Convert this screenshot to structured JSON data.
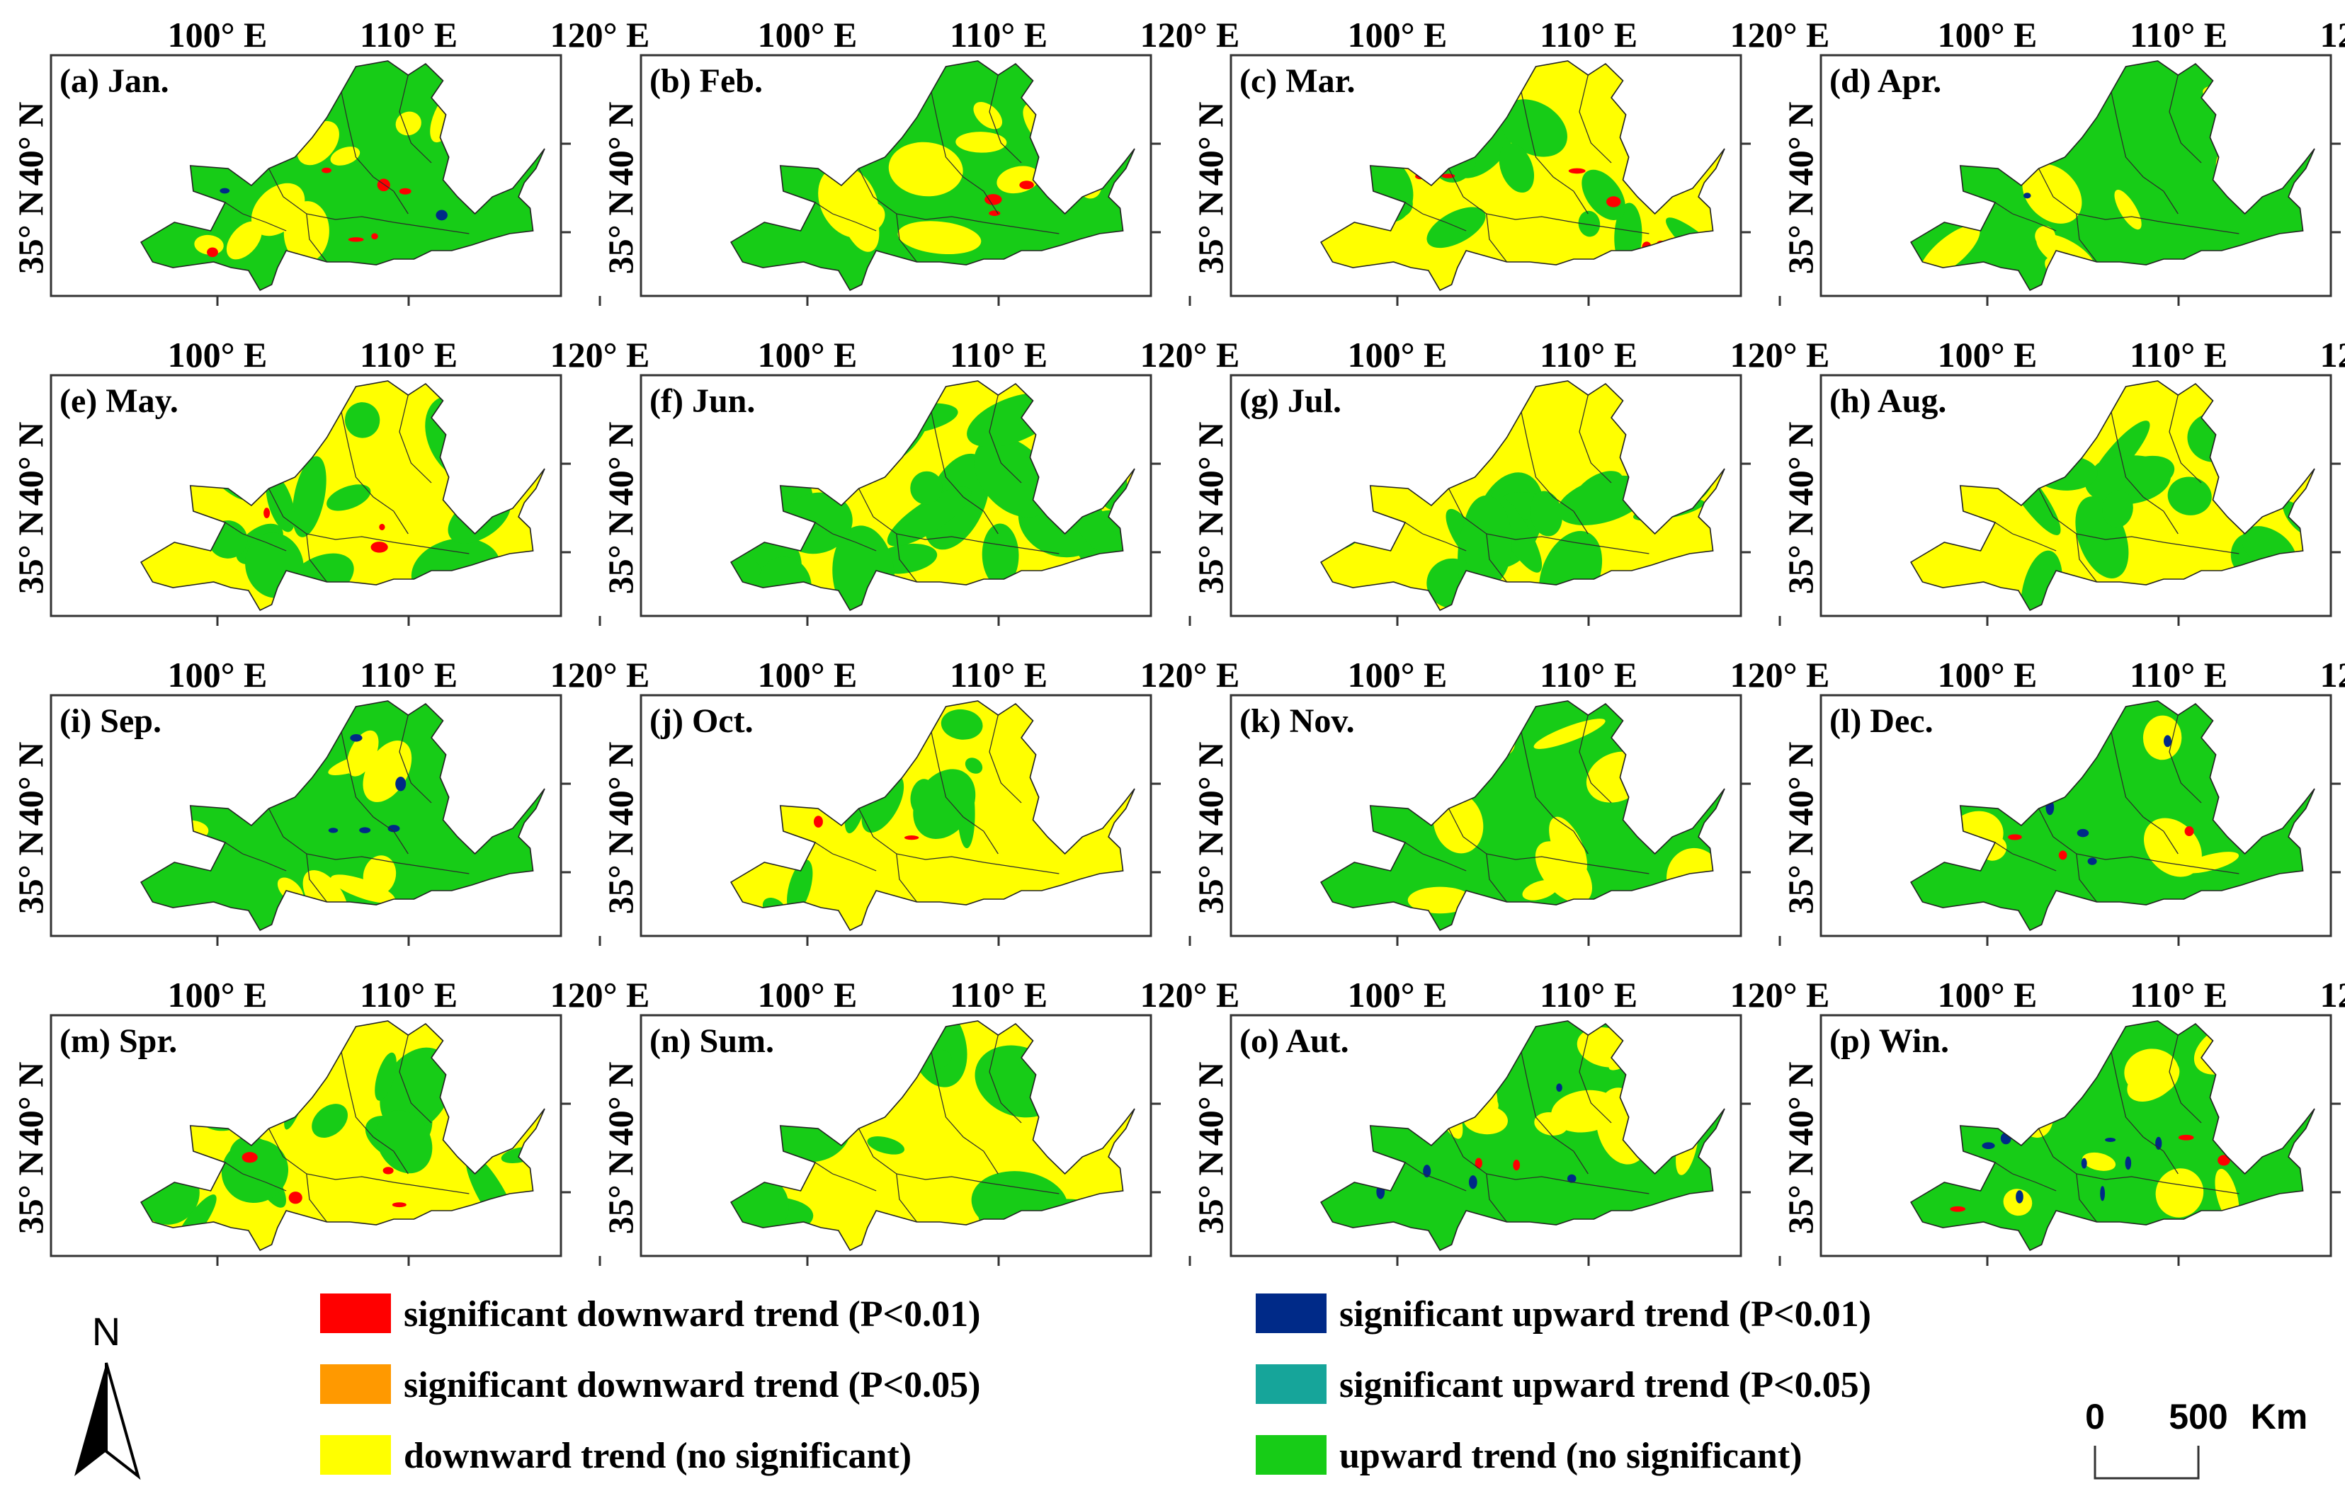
{
  "colors": {
    "sig_down_001": "#ff0000",
    "sig_down_005": "#ff9900",
    "down": "#ffff00",
    "sig_up_001": "#002a88",
    "sig_up_005": "#16a59a",
    "up": "#17cc17",
    "frame": "#333333"
  },
  "axes": {
    "lon_labels": [
      "100° E",
      "110° E",
      "120° E"
    ],
    "lat_labels": [
      "40° N",
      "35° N"
    ]
  },
  "panels": [
    {
      "id": "a",
      "title": "(a) Jan.",
      "dominant": "up",
      "yellow": 0.2,
      "red": 0.02,
      "blue": 0.01
    },
    {
      "id": "b",
      "title": "(b) Feb.",
      "dominant": "up",
      "yellow": 0.3,
      "red": 0.01,
      "blue": 0.0
    },
    {
      "id": "c",
      "title": "(c) Mar.",
      "dominant": "down",
      "yellow": 0.6,
      "red": 0.02,
      "blue": 0.0
    },
    {
      "id": "d",
      "title": "(d) Apr.",
      "dominant": "up",
      "yellow": 0.18,
      "red": 0.0,
      "blue": 0.01
    },
    {
      "id": "e",
      "title": "(e) May.",
      "dominant": "down",
      "yellow": 0.55,
      "red": 0.01,
      "blue": 0.0
    },
    {
      "id": "f",
      "title": "(f) Jun.",
      "dominant": "down",
      "yellow": 0.45,
      "red": 0.0,
      "blue": 0.0
    },
    {
      "id": "g",
      "title": "(g) Jul.",
      "dominant": "down",
      "yellow": 0.45,
      "red": 0.0,
      "blue": 0.0
    },
    {
      "id": "h",
      "title": "(h) Aug.",
      "dominant": "down",
      "yellow": 0.5,
      "red": 0.0,
      "blue": 0.0
    },
    {
      "id": "i",
      "title": "(i) Sep.",
      "dominant": "up",
      "yellow": 0.15,
      "red": 0.0,
      "blue": 0.02
    },
    {
      "id": "j",
      "title": "(j) Oct.",
      "dominant": "down",
      "yellow": 0.75,
      "red": 0.01,
      "blue": 0.0
    },
    {
      "id": "k",
      "title": "(k) Nov.",
      "dominant": "up",
      "yellow": 0.25,
      "red": 0.0,
      "blue": 0.0
    },
    {
      "id": "l",
      "title": "(l) Dec.",
      "dominant": "up",
      "yellow": 0.1,
      "red": 0.01,
      "blue": 0.02
    },
    {
      "id": "m",
      "title": "(m) Spr.",
      "dominant": "down",
      "yellow": 0.55,
      "red": 0.02,
      "blue": 0.0
    },
    {
      "id": "n",
      "title": "(n) Sum.",
      "dominant": "down",
      "yellow": 0.5,
      "red": 0.0,
      "blue": 0.0
    },
    {
      "id": "o",
      "title": "(o) Aut.",
      "dominant": "up",
      "yellow": 0.25,
      "red": 0.01,
      "blue": 0.02
    },
    {
      "id": "p",
      "title": "(p) Win.",
      "dominant": "up",
      "yellow": 0.12,
      "red": 0.01,
      "blue": 0.03
    }
  ],
  "legend": [
    {
      "key": "sig_down_001",
      "label": "significant downward trend (P<0.01)"
    },
    {
      "key": "sig_down_005",
      "label": "significant downward trend (P<0.05)"
    },
    {
      "key": "down",
      "label": "downward trend (no significant)"
    },
    {
      "key": "sig_up_001",
      "label": "significant upward trend (P<0.01)"
    },
    {
      "key": "sig_up_005",
      "label": "significant upward trend (P<0.05)"
    },
    {
      "key": "up",
      "label": "upward trend (no significant)"
    }
  ],
  "north_arrow": {
    "label": "N"
  },
  "scale_bar": {
    "zero": "0",
    "distance": "500",
    "unit": "Km"
  }
}
